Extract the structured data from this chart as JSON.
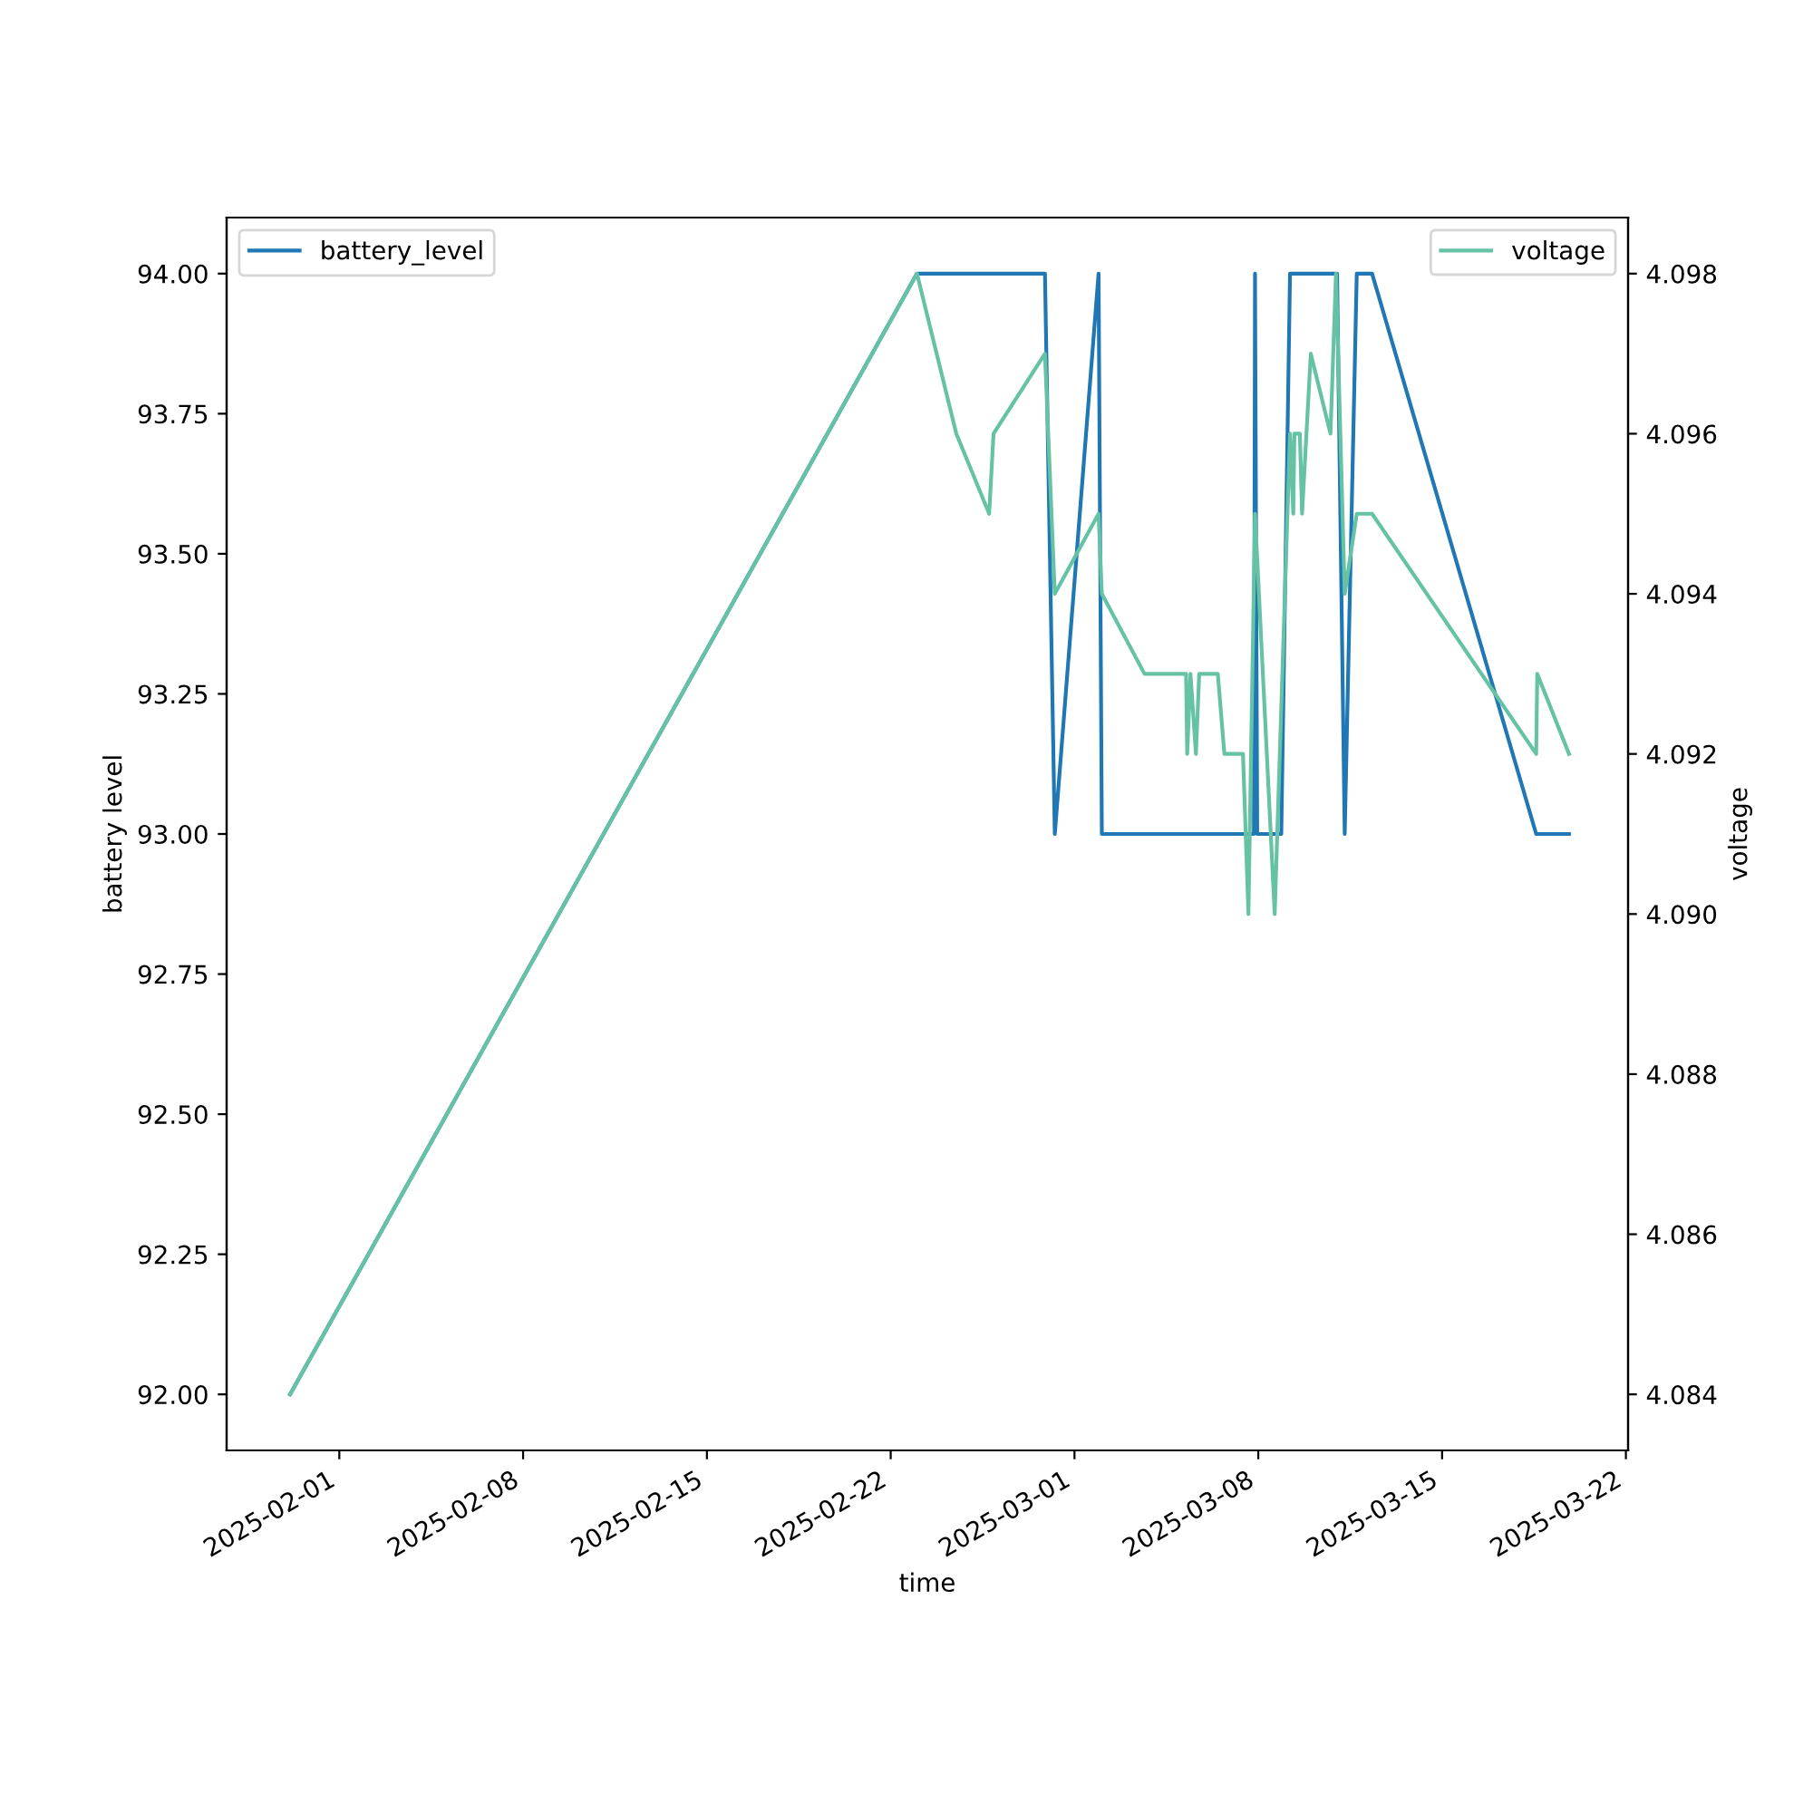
{
  "chart_data": {
    "type": "line",
    "xlabel": "time",
    "ylabel": "battery level",
    "y2label": "voltage",
    "xlim": [
      "2025-01-27T17:00",
      "2025-03-22T02:00"
    ],
    "xticks": [
      "2025-02-01",
      "2025-02-08",
      "2025-02-15",
      "2025-02-22",
      "2025-03-01",
      "2025-03-08",
      "2025-03-15",
      "2025-03-22"
    ],
    "ylim": [
      91.9,
      94.1
    ],
    "yticks": [
      {
        "value": 92,
        "label": "92.00"
      },
      {
        "value": 92.25,
        "label": "92.25"
      },
      {
        "value": 92.5,
        "label": "92.50"
      },
      {
        "value": 92.75,
        "label": "92.75"
      },
      {
        "value": 93,
        "label": "93.00"
      },
      {
        "value": 93.25,
        "label": "93.25"
      },
      {
        "value": 93.5,
        "label": "93.50"
      },
      {
        "value": 93.75,
        "label": "93.75"
      },
      {
        "value": 94,
        "label": "94.00"
      }
    ],
    "y2lim": [
      4.0833,
      4.0987
    ],
    "y2ticks": [
      4.084,
      4.086,
      4.088,
      {
        "value": 4.09,
        "label": "4.090"
      },
      4.092,
      4.094,
      4.096,
      4.098
    ],
    "legend": "top left",
    "series": [
      {
        "name": "battery_level",
        "color": "#1f77b4",
        "x": [
          "2025-01-30T03:00",
          "2025-02-23T00:00",
          "2025-02-27T21:00",
          "2025-02-28T06:00",
          "2025-03-01T22:00",
          "2025-03-02T01:00",
          "2025-03-07T20:00",
          "2025-03-07T21:00",
          "2025-03-07T23:00",
          "2025-03-08T21:00",
          "2025-03-09T05:00",
          "2025-03-11T00:00",
          "2025-03-11T07:00",
          "2025-03-11T18:00",
          "2025-03-12T08:00",
          "2025-03-18T14:00",
          "2025-03-19T20:00"
        ],
        "values": [
          92,
          94,
          94,
          93,
          94,
          93,
          93,
          94,
          93,
          93,
          94,
          94,
          93,
          94,
          94,
          93,
          93
        ]
      },
      {
        "name": "voltage",
        "color": "#66c2a5",
        "axis": "y2",
        "x": [
          "2025-01-30T03:00",
          "2025-02-23T00:00",
          "2025-02-24T12:00",
          "2025-02-25T18:00",
          "2025-02-25T22:00",
          "2025-02-27T21:00",
          "2025-02-28T06:00",
          "2025-03-01T22:00",
          "2025-03-02T01:00",
          "2025-03-03T16:00",
          "2025-03-05T06:00",
          "2025-03-05T07:00",
          "2025-03-05T10:00",
          "2025-03-05T15:00",
          "2025-03-05T18:00",
          "2025-03-06T11:00",
          "2025-03-06T17:00",
          "2025-03-07T10:00",
          "2025-03-07T15:00",
          "2025-03-07T21:00",
          "2025-03-08T15:00",
          "2025-03-09T05:00",
          "2025-03-09T08:00",
          "2025-03-09T09:00",
          "2025-03-09T14:00",
          "2025-03-09T16:00",
          "2025-03-10T00:00",
          "2025-03-10T18:00",
          "2025-03-10T23:00",
          "2025-03-11T07:00",
          "2025-03-11T18:00",
          "2025-03-12T08:00",
          "2025-03-18T14:00",
          "2025-03-18T15:00",
          "2025-03-19T20:00"
        ],
        "values": [
          4.084,
          4.098,
          4.096,
          4.095,
          4.096,
          4.097,
          4.094,
          4.095,
          4.094,
          4.093,
          4.093,
          4.092,
          4.093,
          4.092,
          4.093,
          4.093,
          4.092,
          4.092,
          4.09,
          4.095,
          4.09,
          4.096,
          4.095,
          4.096,
          4.096,
          4.095,
          4.097,
          4.096,
          4.098,
          4.094,
          4.095,
          4.095,
          4.092,
          4.093,
          4.092
        ]
      }
    ]
  }
}
